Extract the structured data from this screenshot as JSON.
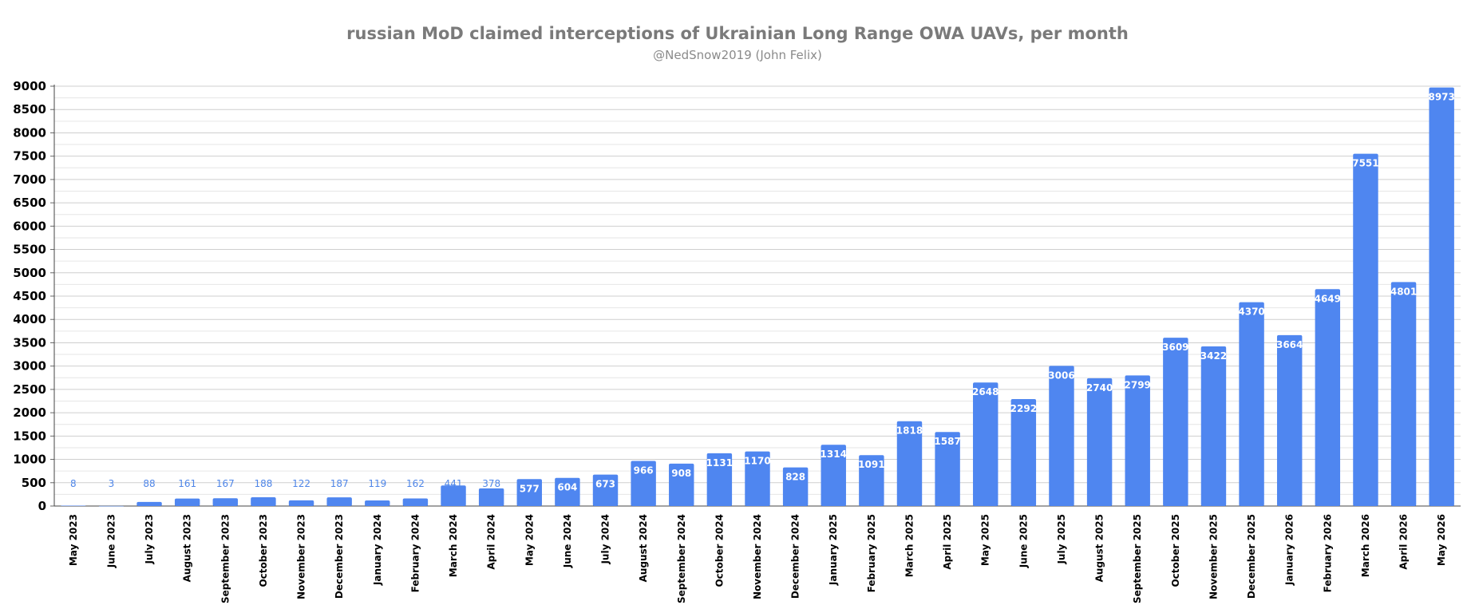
{
  "chart_data": {
    "type": "bar",
    "title": "russian MoD claimed interceptions of Ukrainian Long Range OWA UAVs, per month",
    "subtitle": "@NedSnow2019 (John Felix)",
    "xlabel": "",
    "ylabel": "",
    "ylim": [
      0,
      9000
    ],
    "yticks": [
      "0",
      "500",
      "1000",
      "1500",
      "2000",
      "2500",
      "3000",
      "3500",
      "4000",
      "4500",
      "5000",
      "5500",
      "6000",
      "6500",
      "7000",
      "7500",
      "8000",
      "8500",
      "9000"
    ],
    "grid": true,
    "bar_color": "#4f86f0",
    "categories": [
      "May 2023",
      "June 2023",
      "July 2023",
      "August 2023",
      "September 2023",
      "October 2023",
      "November 2023",
      "December 2023",
      "January 2024",
      "February 2024",
      "March 2024",
      "April 2024",
      "May 2024",
      "June 2024",
      "July 2024",
      "August 2024",
      "September 2024",
      "October 2024",
      "November 2024",
      "December 2024",
      "January 2025",
      "February 2025",
      "March 2025",
      "April 2025",
      "May 2025",
      "June 2025",
      "July 2025",
      "August 2025",
      "September 2025",
      "October 2025",
      "November 2025",
      "December 2025",
      "January 2026",
      "February 2026",
      "March 2026",
      "April 2026",
      "May 2026"
    ],
    "values": [
      8,
      3,
      88,
      161,
      167,
      188,
      122,
      187,
      119,
      162,
      441,
      378,
      577,
      604,
      673,
      966,
      908,
      1131,
      1170,
      828,
      1314,
      1091,
      1818,
      1587,
      2648,
      2292,
      3006,
      2740,
      2799,
      3609,
      3422,
      4370,
      3664,
      4649,
      7551,
      4801,
      8973
    ],
    "data_labels": [
      "8",
      "3",
      "88",
      "161",
      "167",
      "188",
      "122",
      "187",
      "119",
      "162",
      "441",
      "378",
      "577",
      "604",
      "673",
      "966",
      "908",
      "1131",
      "1170",
      "828",
      "1314",
      "1091",
      "1818",
      "1587",
      "2648",
      "2292",
      "3006",
      "2740",
      "2799",
      "3609",
      "3422",
      "4370",
      "3664",
      "4649",
      "7551",
      "4801",
      "8973"
    ]
  }
}
